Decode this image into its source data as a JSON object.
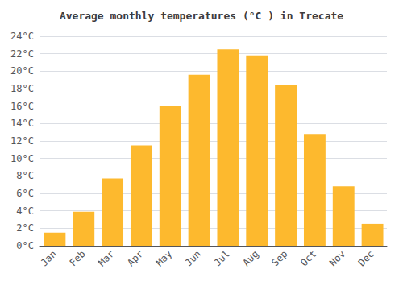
{
  "chart_data": {
    "type": "bar",
    "title": "Average monthly temperatures (°C ) in Trecate",
    "categories": [
      "Jan",
      "Feb",
      "Mar",
      "Apr",
      "May",
      "Jun",
      "Jul",
      "Aug",
      "Sep",
      "Oct",
      "Nov",
      "Dec"
    ],
    "values": [
      1.5,
      3.9,
      7.7,
      11.5,
      16.0,
      19.6,
      22.5,
      21.8,
      18.4,
      12.8,
      6.8,
      2.5
    ],
    "color": "#FDB92E",
    "ylim": [
      0,
      24
    ],
    "yticks": [
      {
        "value": 0,
        "label": "0°C"
      },
      {
        "value": 2,
        "label": "2°C"
      },
      {
        "value": 4,
        "label": "4°C"
      },
      {
        "value": 6,
        "label": "6°C"
      },
      {
        "value": 8,
        "label": "8°C"
      },
      {
        "value": 10,
        "label": "10°C"
      },
      {
        "value": 12,
        "label": "12°C"
      },
      {
        "value": 14,
        "label": "14°C"
      },
      {
        "value": 16,
        "label": "16°C"
      },
      {
        "value": 18,
        "label": "18°C"
      },
      {
        "value": 20,
        "label": "20°C"
      },
      {
        "value": 22,
        "label": "22°C"
      },
      {
        "value": 24,
        "label": "24°C"
      }
    ],
    "grid": true
  }
}
